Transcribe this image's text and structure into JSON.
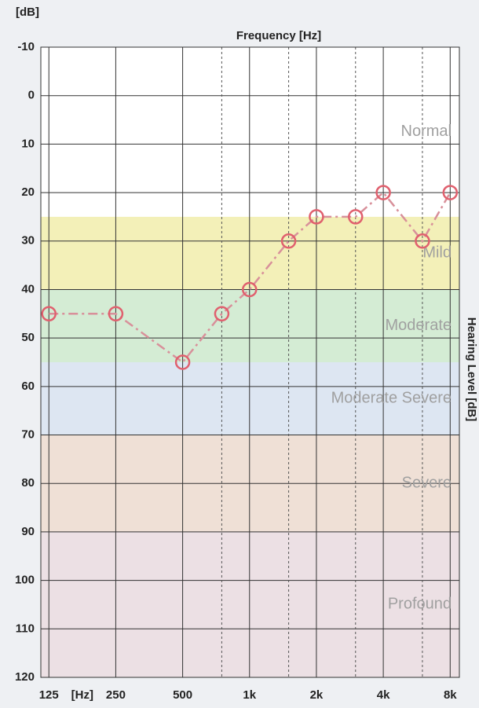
{
  "chart_data": {
    "type": "audiogram",
    "title": "Frequency [Hz]",
    "y_unit": "[dB]",
    "x_unit": "[Hz]",
    "y2_label": "Hearing Level [dB]",
    "log_x": true,
    "y_inverted": true,
    "grid": true,
    "xlim": [
      115,
      8800
    ],
    "xticks": [
      125,
      250,
      500,
      {
        "value": 1000,
        "label": "1k"
      },
      {
        "value": 2000,
        "label": "2k"
      },
      {
        "value": 4000,
        "label": "4k"
      },
      {
        "value": 8000,
        "label": "8k"
      }
    ],
    "minor_xticks": [
      750,
      1500,
      3000,
      6000
    ],
    "ylim": [
      -10,
      120
    ],
    "yticks": [
      -10,
      0,
      10,
      20,
      30,
      40,
      50,
      60,
      70,
      80,
      90,
      100,
      110,
      120
    ],
    "zones": [
      {
        "name": "Normal",
        "from": -10,
        "to": 25,
        "color": "#ffffff"
      },
      {
        "name": "Mild",
        "from": 25,
        "to": 40,
        "color": "#f3f0b8"
      },
      {
        "name": "Moderate",
        "from": 40,
        "to": 55,
        "color": "#d4ecd4"
      },
      {
        "name": "Moderate Severe",
        "from": 55,
        "to": 70,
        "color": "#dde6f2"
      },
      {
        "name": "Severe",
        "from": 70,
        "to": 90,
        "color": "#efe0d6"
      },
      {
        "name": "Profound",
        "from": 90,
        "to": 120,
        "color": "#ece0e4"
      }
    ],
    "x": [
      125,
      250,
      500,
      750,
      1000,
      1500,
      2000,
      3000,
      4000,
      6000,
      8000
    ],
    "series": [
      {
        "color": "#e0606e",
        "line_color": "#d8909a",
        "values": [
          45,
          45,
          55,
          45,
          40,
          30,
          25,
          25,
          20,
          30,
          20
        ]
      }
    ]
  }
}
